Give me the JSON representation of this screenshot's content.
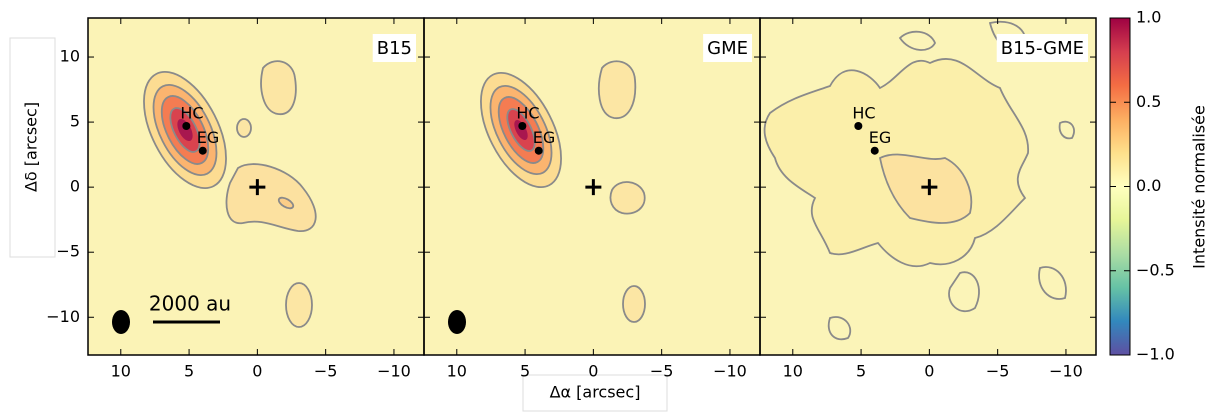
{
  "chart_data": [
    {
      "type": "image",
      "title": "B15",
      "xlim": [
        12.4,
        -12.2
      ],
      "ylim": [
        -12.9,
        13
      ],
      "xticks": [
        10,
        5,
        0,
        {
          "value": -5,
          "label": "−5"
        },
        {
          "value": -10,
          "label": "−10"
        }
      ],
      "yticks": [
        {
          "value": -10,
          "label": "−10"
        },
        {
          "value": -5,
          "label": "−5"
        },
        0,
        5,
        10
      ],
      "points": [
        {
          "label": "HC",
          "x": 5.2,
          "y": 4.7
        },
        {
          "label": "EG",
          "x": 4.0,
          "y": 2.8
        }
      ],
      "cross": {
        "x": 0,
        "y": 0
      },
      "scalebar": "2000 au"
    },
    {
      "type": "image",
      "title": "GME",
      "xlim": [
        12.4,
        -12.2
      ],
      "ylim": [
        -12.9,
        13
      ],
      "xticks": [
        10,
        5,
        0,
        {
          "value": -5,
          "label": "−5"
        },
        {
          "value": -10,
          "label": "−10"
        }
      ],
      "points": [
        {
          "label": "HC",
          "x": 5.2,
          "y": 4.7
        },
        {
          "label": "EG",
          "x": 4.0,
          "y": 2.8
        }
      ],
      "cross": {
        "x": 0,
        "y": 0
      }
    },
    {
      "type": "image",
      "title": "B15-GME",
      "xlim": [
        12.4,
        -12.2
      ],
      "ylim": [
        -12.9,
        13
      ],
      "xticks": [
        10,
        5,
        0,
        {
          "value": -5,
          "label": "−5"
        },
        {
          "value": -10,
          "label": "−10"
        }
      ],
      "points": [
        {
          "label": "HC",
          "x": 5.2,
          "y": 4.7
        },
        {
          "label": "EG",
          "x": 4.0,
          "y": 2.8
        }
      ],
      "cross": {
        "x": 0,
        "y": 0
      }
    }
  ],
  "xlabel": "Δα [arcsec]",
  "ylabel": "Δδ [arcsec]",
  "colorbar": {
    "label": "Intensité normalisée",
    "lim": [
      -1,
      1
    ],
    "ticks": [
      {
        "value": -1,
        "label": "−1.0"
      },
      {
        "value": -0.5,
        "label": "−0.5"
      },
      {
        "value": 0,
        "label": "0.0"
      },
      0.5,
      {
        "value": 1,
        "label": "1.0"
      }
    ],
    "colors": [
      "#5e4fa2",
      "#3288bd",
      "#66c2a5",
      "#abdda4",
      "#e6f598",
      "#ffffbf",
      "#fee08b",
      "#fdae61",
      "#f46d43",
      "#d53e4f",
      "#9e0142"
    ]
  }
}
